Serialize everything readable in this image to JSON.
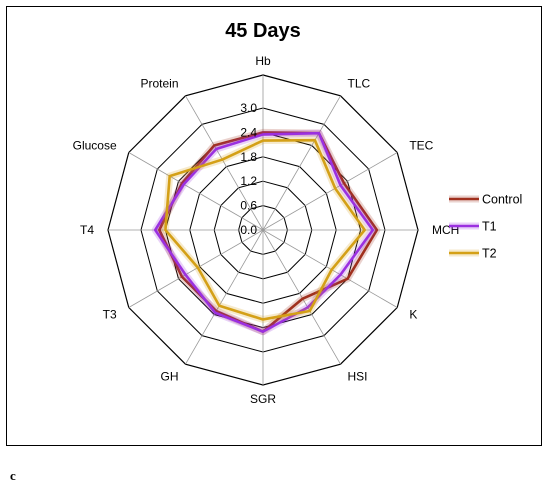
{
  "panel_label": "c",
  "chart_data": {
    "type": "radar",
    "title": "45 Days",
    "axes": [
      "Hb",
      "TLC",
      "TEC",
      "MCH",
      "K",
      "HSI",
      "SGR",
      "GH",
      "T3",
      "T4",
      "Glucose",
      "Protein"
    ],
    "rlim": [
      0,
      3.0
    ],
    "ticks": [
      "0.0",
      "0.6",
      "1.2",
      "1.8",
      "2.4",
      "3.0"
    ],
    "tick_values": [
      0,
      0.6,
      1.2,
      1.8,
      2.4,
      3.0
    ],
    "grid": true,
    "legend_position": "right",
    "series": [
      {
        "name": "Control",
        "color": "#a0301e",
        "values": [
          2.4,
          2.75,
          2.3,
          2.8,
          2.4,
          1.95,
          2.5,
          2.3,
          2.3,
          2.55,
          2.3,
          2.4
        ]
      },
      {
        "name": "T1",
        "color": "#9b30e0",
        "values": [
          2.35,
          2.75,
          2.2,
          2.7,
          2.2,
          2.2,
          2.5,
          2.35,
          2.2,
          2.65,
          2.25,
          2.3
        ]
      },
      {
        "name": "T2",
        "color": "#d4a017",
        "values": [
          2.2,
          2.55,
          2.05,
          2.5,
          1.95,
          2.3,
          2.2,
          2.15,
          1.85,
          2.4,
          2.65,
          2.0
        ]
      }
    ]
  }
}
